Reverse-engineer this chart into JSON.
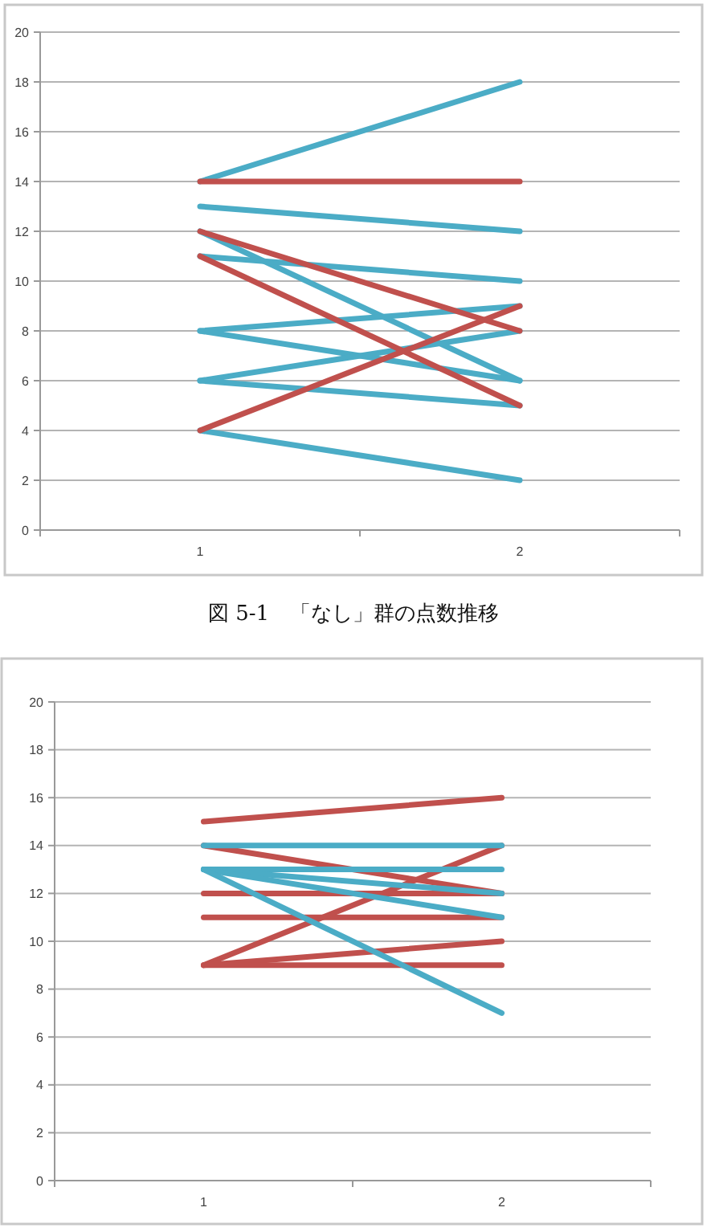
{
  "chart_data": [
    {
      "type": "line",
      "title": "図 5-1　「なし」群の点数推移",
      "categories": [
        "1",
        "2"
      ],
      "ylim": [
        0,
        20
      ],
      "yticks": [
        0,
        2,
        4,
        6,
        8,
        10,
        12,
        14,
        16,
        18,
        20
      ],
      "grid": "y",
      "marker": "none",
      "line_style": "solid",
      "series": [
        {
          "color": "#4bacc6",
          "values": [
            14,
            18
          ]
        },
        {
          "color": "#4bacc6",
          "values": [
            13,
            12
          ]
        },
        {
          "color": "#4bacc6",
          "values": [
            12,
            6
          ]
        },
        {
          "color": "#4bacc6",
          "values": [
            11,
            10
          ]
        },
        {
          "color": "#4bacc6",
          "values": [
            8,
            9
          ]
        },
        {
          "color": "#4bacc6",
          "values": [
            8,
            6
          ]
        },
        {
          "color": "#4bacc6",
          "values": [
            6,
            8
          ]
        },
        {
          "color": "#4bacc6",
          "values": [
            6,
            5
          ]
        },
        {
          "color": "#4bacc6",
          "values": [
            4,
            2
          ]
        },
        {
          "color": "#c0504d",
          "values": [
            14,
            14
          ]
        },
        {
          "color": "#c0504d",
          "values": [
            12,
            8
          ]
        },
        {
          "color": "#c0504d",
          "values": [
            11,
            5
          ]
        },
        {
          "color": "#c0504d",
          "values": [
            4,
            9
          ]
        }
      ]
    },
    {
      "type": "line",
      "categories": [
        "1",
        "2"
      ],
      "ylim": [
        0,
        20
      ],
      "yticks": [
        0,
        2,
        4,
        6,
        8,
        10,
        12,
        14,
        16,
        18,
        20
      ],
      "grid": "y",
      "marker": "none",
      "line_style": "solid",
      "series": [
        {
          "color": "#c0504d",
          "values": [
            15,
            16
          ]
        },
        {
          "color": "#c0504d",
          "values": [
            14,
            12
          ]
        },
        {
          "color": "#c0504d",
          "values": [
            12,
            12
          ]
        },
        {
          "color": "#c0504d",
          "values": [
            11,
            11
          ]
        },
        {
          "color": "#c0504d",
          "values": [
            9,
            14
          ]
        },
        {
          "color": "#c0504d",
          "values": [
            9,
            10
          ]
        },
        {
          "color": "#c0504d",
          "values": [
            9,
            9
          ]
        },
        {
          "color": "#4bacc6",
          "values": [
            14,
            14
          ]
        },
        {
          "color": "#4bacc6",
          "values": [
            13,
            13
          ]
        },
        {
          "color": "#4bacc6",
          "values": [
            13,
            12
          ]
        },
        {
          "color": "#4bacc6",
          "values": [
            13,
            11
          ]
        },
        {
          "color": "#4bacc6",
          "values": [
            13,
            7
          ]
        }
      ]
    }
  ]
}
